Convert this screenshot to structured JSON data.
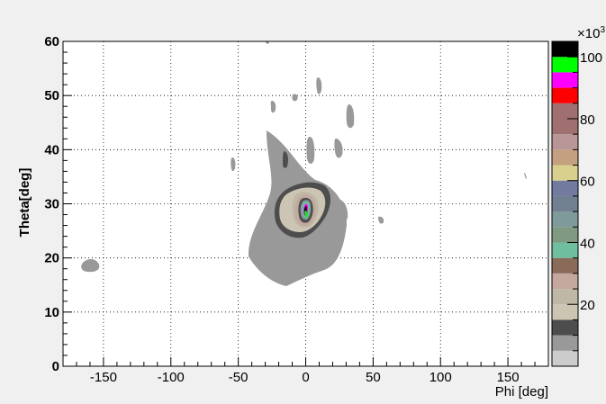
{
  "chart_data": {
    "type": "heatmap",
    "subtype": "filled-contour",
    "title": "",
    "xlabel": "Phi [deg]",
    "ylabel": "Theta[deg]",
    "xlim": [
      -180,
      180
    ],
    "ylim": [
      0,
      60
    ],
    "xticks": [
      -150,
      -100,
      -50,
      0,
      50,
      100,
      150
    ],
    "yticks": [
      0,
      10,
      20,
      30,
      40,
      50,
      60
    ],
    "grid": true,
    "colorbar": {
      "range": [
        0,
        105
      ],
      "multiplier_label": "×10",
      "multiplier_exponent": "3",
      "ticks": [
        20,
        40,
        60,
        80,
        100
      ],
      "levels": [
        {
          "from": 0,
          "color": "#cccccc"
        },
        {
          "from": 5,
          "color": "#999999"
        },
        {
          "from": 10,
          "color": "#4d4d4d"
        },
        {
          "from": 15,
          "color": "#ccc5b3"
        },
        {
          "from": 20,
          "color": "#bfb8a6"
        },
        {
          "from": 25,
          "color": "#c4a89e"
        },
        {
          "from": 30,
          "color": "#8a6a58"
        },
        {
          "from": 35,
          "color": "#6fbf9f"
        },
        {
          "from": 40,
          "color": "#7f9a80"
        },
        {
          "from": 45,
          "color": "#7f9a9a"
        },
        {
          "from": 50,
          "color": "#708090"
        },
        {
          "from": 55,
          "color": "#727aa0"
        },
        {
          "from": 60,
          "color": "#d8d08c"
        },
        {
          "from": 65,
          "color": "#c4a080"
        },
        {
          "from": 70,
          "color": "#b89698"
        },
        {
          "from": 75,
          "color": "#a07070"
        },
        {
          "from": 85,
          "color": "#ff0000"
        },
        {
          "from": 90,
          "color": "#ff00ff"
        },
        {
          "from": 95,
          "color": "#00ff00"
        },
        {
          "from": 100,
          "color": "#000000"
        }
      ]
    },
    "features": [
      {
        "name": "central peak",
        "phi": 0,
        "theta": 28,
        "peak_value": 100
      }
    ]
  }
}
